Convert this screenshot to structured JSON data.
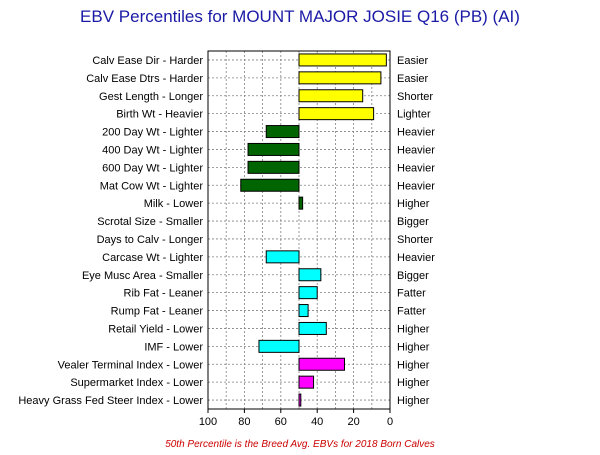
{
  "chart_data": {
    "type": "bar",
    "orientation": "horizontal",
    "title": "EBV Percentiles for MOUNT MAJOR JOSIE Q16 (PB) (AI)",
    "footnote": "50th Percentile is the Breed Avg. EBVs for 2018 Born Calves",
    "xlim": [
      100,
      0
    ],
    "xticks": [
      100,
      80,
      60,
      40,
      20,
      0
    ],
    "baseline": 50,
    "grid": true,
    "colors": {
      "yellow": "#ffff00",
      "green": "#006400",
      "cyan": "#00ffff",
      "magenta": "#ff00ff"
    },
    "rows": [
      {
        "left_label": "Calv Ease Dir - Harder",
        "right_label": "Easier",
        "value": 2,
        "color": "yellow"
      },
      {
        "left_label": "Calv Ease Dtrs - Harder",
        "right_label": "Easier",
        "value": 5,
        "color": "yellow"
      },
      {
        "left_label": "Gest Length - Longer",
        "right_label": "Shorter",
        "value": 15,
        "color": "yellow"
      },
      {
        "left_label": "Birth Wt - Heavier",
        "right_label": "Lighter",
        "value": 9,
        "color": "yellow"
      },
      {
        "left_label": "200 Day Wt - Lighter",
        "right_label": "Heavier",
        "value": 68,
        "color": "green"
      },
      {
        "left_label": "400 Day Wt - Lighter",
        "right_label": "Heavier",
        "value": 78,
        "color": "green"
      },
      {
        "left_label": "600 Day Wt - Lighter",
        "right_label": "Heavier",
        "value": 78,
        "color": "green"
      },
      {
        "left_label": "Mat Cow Wt - Lighter",
        "right_label": "Heavier",
        "value": 82,
        "color": "green"
      },
      {
        "left_label": "Milk - Lower",
        "right_label": "Higher",
        "value": 48,
        "color": "green"
      },
      {
        "left_label": "Scrotal Size - Smaller",
        "right_label": "Bigger",
        "value": 50,
        "color": "green"
      },
      {
        "left_label": "Days to Calv - Longer",
        "right_label": "Shorter",
        "value": 50,
        "color": "green"
      },
      {
        "left_label": "Carcase Wt - Lighter",
        "right_label": "Heavier",
        "value": 68,
        "color": "cyan"
      },
      {
        "left_label": "Eye Musc Area - Smaller",
        "right_label": "Bigger",
        "value": 38,
        "color": "cyan"
      },
      {
        "left_label": "Rib Fat - Leaner",
        "right_label": "Fatter",
        "value": 40,
        "color": "cyan"
      },
      {
        "left_label": "Rump Fat - Leaner",
        "right_label": "Fatter",
        "value": 45,
        "color": "cyan"
      },
      {
        "left_label": "Retail Yield - Lower",
        "right_label": "Higher",
        "value": 35,
        "color": "cyan"
      },
      {
        "left_label": "IMF - Lower",
        "right_label": "Higher",
        "value": 72,
        "color": "cyan"
      },
      {
        "left_label": "Vealer Terminal Index - Lower",
        "right_label": "Higher",
        "value": 25,
        "color": "magenta"
      },
      {
        "left_label": "Supermarket Index - Lower",
        "right_label": "Higher",
        "value": 42,
        "color": "magenta"
      },
      {
        "left_label": "Heavy Grass Fed Steer Index - Lower",
        "right_label": "Higher",
        "value": 49,
        "color": "magenta"
      }
    ]
  }
}
